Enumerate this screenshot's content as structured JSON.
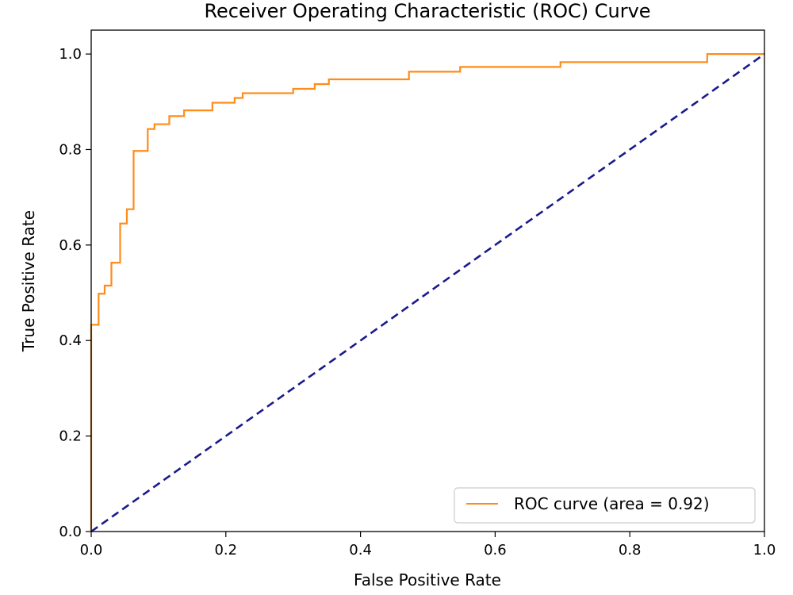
{
  "chart_data": {
    "type": "line",
    "title": "Receiver Operating Characteristic (ROC) Curve",
    "xlabel": "False Positive Rate",
    "ylabel": "True Positive Rate",
    "xlim": [
      0.0,
      1.0
    ],
    "ylim": [
      0.0,
      1.05
    ],
    "x_ticks": [
      "0.0",
      "0.2",
      "0.4",
      "0.6",
      "0.8",
      "1.0"
    ],
    "y_ticks": [
      "0.0",
      "0.2",
      "0.4",
      "0.6",
      "0.8",
      "1.0"
    ],
    "grid": false,
    "legend_position": "lower right",
    "series": [
      {
        "name": "ROC curve (area = 0.92)",
        "color": "#ff8c1a",
        "style": "solid",
        "x": [
          0.0,
          0.0,
          0.011,
          0.011,
          0.02,
          0.02,
          0.03,
          0.03,
          0.043,
          0.043,
          0.053,
          0.053,
          0.063,
          0.063,
          0.084,
          0.084,
          0.094,
          0.094,
          0.116,
          0.116,
          0.138,
          0.138,
          0.18,
          0.18,
          0.213,
          0.213,
          0.225,
          0.225,
          0.3,
          0.3,
          0.332,
          0.332,
          0.353,
          0.353,
          0.472,
          0.472,
          0.548,
          0.548,
          0.697,
          0.697,
          0.915,
          0.915,
          1.0
        ],
        "y": [
          0.0,
          0.433,
          0.433,
          0.498,
          0.498,
          0.515,
          0.515,
          0.563,
          0.563,
          0.645,
          0.645,
          0.675,
          0.675,
          0.797,
          0.797,
          0.843,
          0.843,
          0.853,
          0.853,
          0.87,
          0.87,
          0.882,
          0.882,
          0.898,
          0.898,
          0.908,
          0.908,
          0.918,
          0.918,
          0.927,
          0.927,
          0.937,
          0.937,
          0.947,
          0.947,
          0.963,
          0.963,
          0.973,
          0.973,
          0.983,
          0.983,
          1.0,
          1.0
        ]
      },
      {
        "color": "#1a1a8c",
        "style": "dashed",
        "x": [
          0.0,
          1.0
        ],
        "y": [
          0.0,
          1.0
        ]
      }
    ]
  }
}
